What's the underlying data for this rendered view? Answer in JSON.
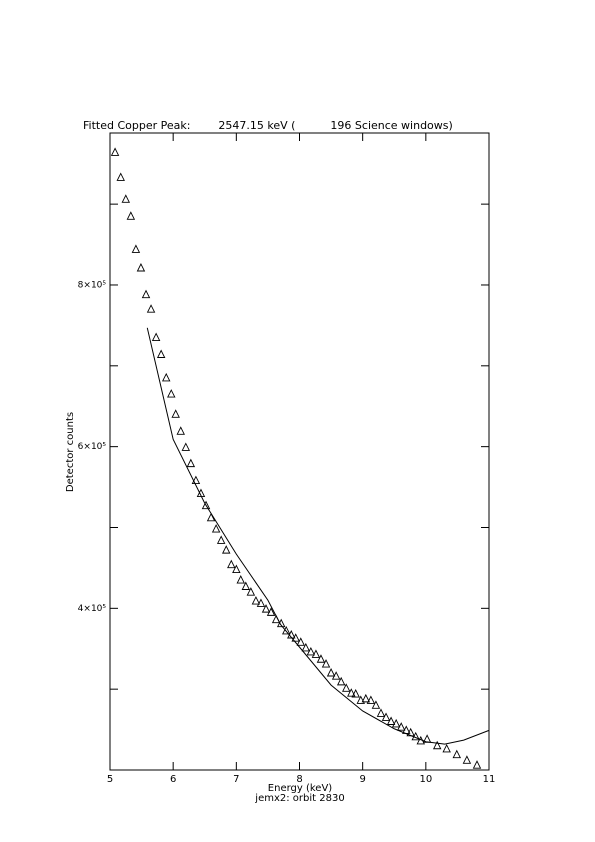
{
  "chart_data": {
    "type": "scatter",
    "title": "Fitted Copper Peak:        2547.15 keV (          196 Science windows)",
    "xlabel": "Energy (keV)",
    "ylabel": "Detector counts",
    "subtitle": "jemx2: orbit 2830",
    "xlim": [
      5,
      11
    ],
    "xticks": [
      5,
      6,
      7,
      8,
      9,
      10,
      11
    ],
    "ylim": [
      200000,
      988000
    ],
    "yticks": [
      {
        "value": 400000,
        "label": "4×10⁵"
      },
      {
        "value": 600000,
        "label": "6×10⁵"
      },
      {
        "value": 800000,
        "label": "8×10⁵"
      }
    ],
    "yminor": [
      300000,
      500000,
      700000,
      900000
    ],
    "series": [
      {
        "type": "scatter",
        "marker": "triangle",
        "color": "#000000",
        "x": [
          5.08,
          5.17,
          5.25,
          5.33,
          5.41,
          5.49,
          5.57,
          5.65,
          5.73,
          5.81,
          5.89,
          5.97,
          6.04,
          6.12,
          6.2,
          6.28,
          6.36,
          6.44,
          6.52,
          6.6,
          6.68,
          6.76,
          6.84,
          6.92,
          7.0,
          7.07,
          7.15,
          7.23,
          7.31,
          7.39,
          7.47,
          7.55,
          7.63,
          7.71,
          7.79,
          7.87,
          7.94,
          8.02,
          8.1,
          8.18,
          8.26,
          8.34,
          8.42,
          8.5,
          8.58,
          8.66,
          8.74,
          8.82,
          8.89,
          8.97,
          9.05,
          9.13,
          9.21,
          9.29,
          9.37,
          9.45,
          9.53,
          9.61,
          9.69,
          9.76,
          9.84,
          9.92,
          10.02,
          10.18,
          10.33,
          10.49,
          10.65,
          10.81
        ],
        "values": [
          964000,
          933000,
          906000,
          885000,
          844000,
          821000,
          788000,
          770000,
          735000,
          714000,
          685000,
          665000,
          640000,
          619000,
          599000,
          579000,
          558000,
          542000,
          527000,
          512000,
          498000,
          484000,
          472000,
          454000,
          448000,
          435000,
          427000,
          420000,
          409000,
          406000,
          399000,
          395000,
          386000,
          381000,
          372000,
          367000,
          363000,
          358000,
          351000,
          346000,
          343000,
          337000,
          331000,
          320000,
          316000,
          309000,
          301000,
          295000,
          294000,
          286000,
          288000,
          286000,
          280000,
          270000,
          265000,
          260000,
          257000,
          253000,
          249000,
          246000,
          241000,
          236000,
          238000,
          230000,
          226000,
          219000,
          212000,
          206000
        ]
      },
      {
        "type": "line",
        "color": "#000000",
        "x": [
          5.59,
          6.0,
          6.5,
          7.0,
          7.5,
          7.7,
          8.0,
          8.5,
          9.0,
          9.5,
          10.0,
          10.3,
          10.6,
          11.0
        ],
        "values": [
          747000,
          609000,
          530000,
          467000,
          410000,
          380000,
          352000,
          305000,
          273000,
          251000,
          235000,
          232000,
          237000,
          249000
        ]
      }
    ]
  }
}
